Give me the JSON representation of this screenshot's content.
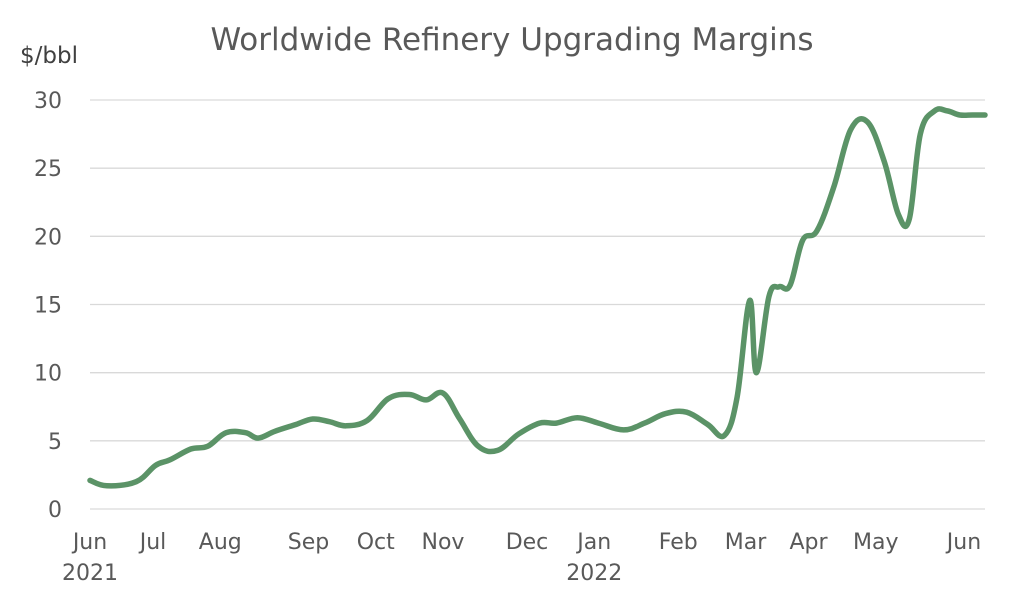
{
  "chart_data": {
    "type": "line",
    "title": "Worldwide Refinery Upgrading Margins",
    "xlabel": "",
    "ylabel": "$/bbl",
    "ylim": [
      0,
      30
    ],
    "yticks": [
      0,
      5,
      10,
      15,
      20,
      25,
      30
    ],
    "grid": true,
    "legend": "none",
    "x_tick_labels": [
      {
        "month": "Jun",
        "year": "2021",
        "t": 0
      },
      {
        "month": "Jul",
        "year": "",
        "t": 0.75
      },
      {
        "month": "Aug",
        "year": "",
        "t": 1.55
      },
      {
        "month": "Sep",
        "year": "",
        "t": 2.6
      },
      {
        "month": "Oct",
        "year": "",
        "t": 3.4
      },
      {
        "month": "Nov",
        "year": "",
        "t": 4.2
      },
      {
        "month": "Dec",
        "year": "",
        "t": 5.2
      },
      {
        "month": "Jan",
        "year": "2022",
        "t": 6.0
      },
      {
        "month": "Feb",
        "year": "",
        "t": 7.0
      },
      {
        "month": "Mar",
        "year": "",
        "t": 7.8
      },
      {
        "month": "Apr",
        "year": "",
        "t": 8.55
      },
      {
        "month": "May",
        "year": "",
        "t": 9.35
      },
      {
        "month": "Jun",
        "year": "",
        "t": 10.4
      }
    ],
    "series": [
      {
        "name": "Upgrading Margin",
        "color": "#5b9367",
        "x": [
          0,
          0.2,
          0.55,
          0.78,
          0.95,
          1.2,
          1.4,
          1.62,
          1.85,
          2.0,
          2.2,
          2.45,
          2.65,
          2.85,
          3.05,
          3.3,
          3.55,
          3.8,
          4.0,
          4.2,
          4.4,
          4.62,
          4.85,
          5.1,
          5.35,
          5.55,
          5.8,
          6.05,
          6.35,
          6.6,
          6.85,
          7.1,
          7.35,
          7.55,
          7.7,
          7.85,
          7.93,
          8.08,
          8.2,
          8.33,
          8.48,
          8.65,
          8.85,
          9.05,
          9.25,
          9.45,
          9.62,
          9.75,
          9.88,
          10.05,
          10.2,
          10.35,
          10.5,
          10.65
        ],
        "values": [
          2.1,
          1.7,
          2.0,
          3.2,
          3.6,
          4.4,
          4.6,
          5.6,
          5.6,
          5.2,
          5.7,
          6.2,
          6.6,
          6.4,
          6.1,
          6.5,
          8.1,
          8.4,
          8.0,
          8.5,
          6.6,
          4.6,
          4.3,
          5.5,
          6.3,
          6.3,
          6.7,
          6.3,
          5.8,
          6.3,
          7.0,
          7.1,
          6.2,
          5.4,
          8.2,
          15.3,
          10.0,
          15.6,
          16.3,
          16.4,
          19.7,
          20.4,
          23.6,
          27.8,
          28.4,
          25.5,
          21.6,
          21.3,
          27.5,
          29.2,
          29.2,
          28.9,
          28.9,
          28.9
        ]
      }
    ]
  }
}
